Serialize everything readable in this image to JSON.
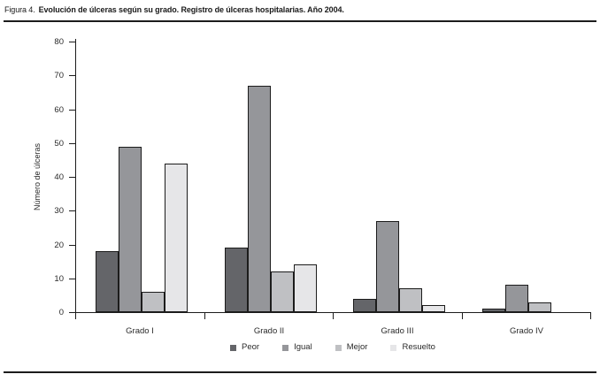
{
  "title": {
    "prefix": "Figura 4.",
    "text": "Evolución de úlceras según su grado. Registro de úlceras hospitalarias. Año 2004."
  },
  "chart_data": {
    "type": "bar",
    "title": "Figura 4. Evolución de úlceras según su grado. Registro de úlceras hospitalarias. Año 2004.",
    "categories": [
      "Grado I",
      "Grado II",
      "Grado III",
      "Grado IV"
    ],
    "series": [
      {
        "name": "Peor",
        "color": "#646569",
        "values": [
          18,
          19,
          4,
          1
        ]
      },
      {
        "name": "Igual",
        "color": "#95969a",
        "values": [
          49,
          67,
          27,
          8
        ]
      },
      {
        "name": "Mejor",
        "color": "#bfc0c3",
        "values": [
          6,
          12,
          7,
          3
        ]
      },
      {
        "name": "Resuelto",
        "color": "#e6e6e8",
        "values": [
          44,
          14,
          2,
          0
        ]
      }
    ],
    "xlabel": "",
    "ylabel": "Número de úlceras",
    "ylim": [
      0,
      80
    ],
    "ytick_step": 10,
    "grid": false,
    "legend_position": "bottom",
    "bar_edge_color": "#1c1c1c"
  }
}
